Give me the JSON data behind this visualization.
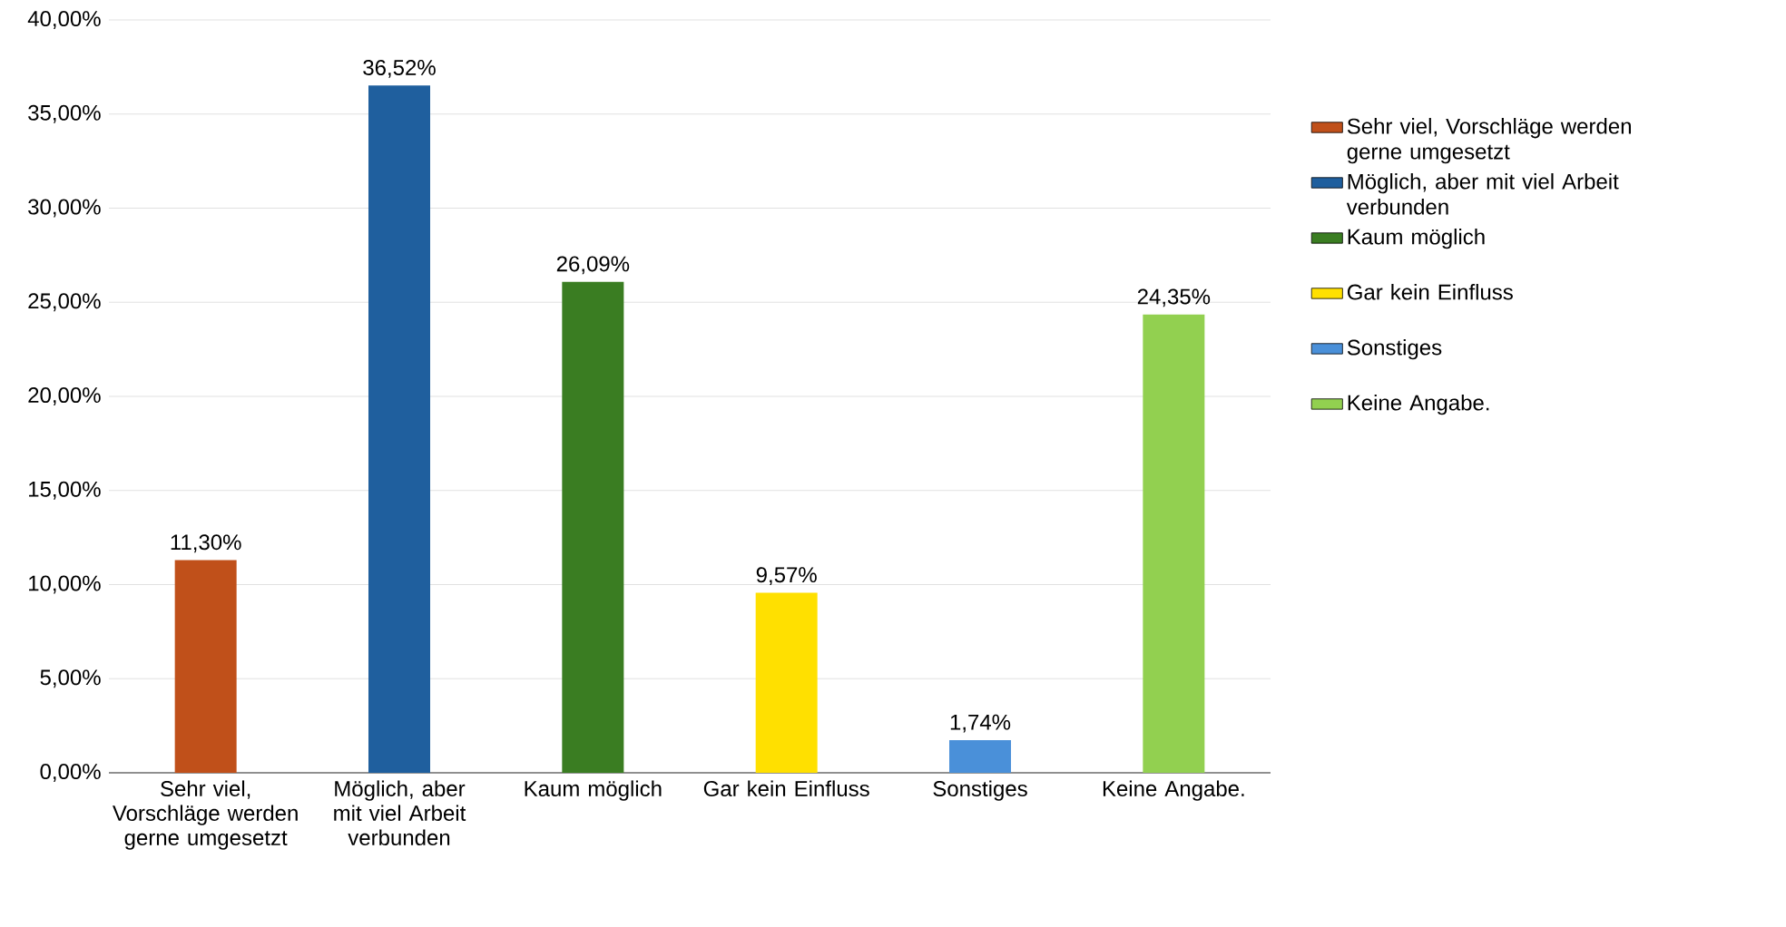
{
  "chart_data": {
    "type": "bar",
    "categories": [
      "Sehr viel, Vorschläge werden gerne umgesetzt",
      "Möglich, aber mit viel Arbeit verbunden",
      "Kaum möglich",
      "Gar kein Einfluss",
      "Sonstiges",
      "Keine Angabe."
    ],
    "series": [
      {
        "name": "Sehr viel, Vorschläge werden gerne umgesetzt",
        "color": "#c0501a",
        "values": [
          11.3,
          null,
          null,
          null,
          null,
          null
        ],
        "value_labels": [
          "11,30%",
          null,
          null,
          null,
          null,
          null
        ]
      },
      {
        "name": "Möglich, aber mit viel Arbeit verbunden",
        "color": "#1f5f9e",
        "values": [
          null,
          36.52,
          null,
          null,
          null,
          null
        ],
        "value_labels": [
          null,
          "36,52%",
          null,
          null,
          null,
          null
        ]
      },
      {
        "name": "Kaum möglich",
        "color": "#3a7d22",
        "values": [
          null,
          null,
          26.09,
          null,
          null,
          null
        ],
        "value_labels": [
          null,
          null,
          "26,09%",
          null,
          null,
          null
        ]
      },
      {
        "name": "Gar kein Einfluss",
        "color": "#ffe000",
        "values": [
          null,
          null,
          null,
          9.57,
          null,
          null
        ],
        "value_labels": [
          null,
          null,
          null,
          "9,57%",
          null,
          null
        ]
      },
      {
        "name": "Sonstiges",
        "color": "#4a90d9",
        "values": [
          null,
          null,
          null,
          null,
          1.74,
          null
        ],
        "value_labels": [
          null,
          null,
          null,
          null,
          "1,74%",
          null
        ]
      },
      {
        "name": "Keine Angabe.",
        "color": "#92d050",
        "values": [
          null,
          null,
          null,
          null,
          null,
          24.35
        ],
        "value_labels": [
          null,
          null,
          null,
          null,
          null,
          "24,35%"
        ]
      }
    ],
    "ylim": [
      0,
      40
    ],
    "yticks": [
      {
        "value": 0,
        "label": "0,00%"
      },
      {
        "value": 5,
        "label": "5,00%"
      },
      {
        "value": 10,
        "label": "10,00%"
      },
      {
        "value": 15,
        "label": "15,00%"
      },
      {
        "value": 20,
        "label": "20,00%"
      },
      {
        "value": 25,
        "label": "25,00%"
      },
      {
        "value": 30,
        "label": "30,00%"
      },
      {
        "value": 35,
        "label": "35,00%"
      },
      {
        "value": 40,
        "label": "40,00%"
      }
    ],
    "grid": "y",
    "legend": "right"
  }
}
